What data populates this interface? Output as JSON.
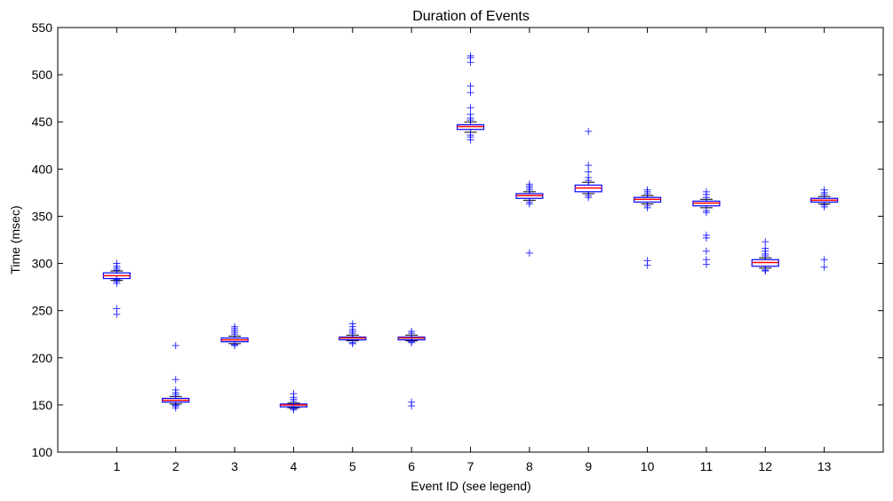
{
  "chart_data": {
    "type": "boxplot",
    "title": "Duration of Events",
    "xlabel": "Event ID (see legend)",
    "ylabel": "Time (msec)",
    "ylim": [
      100,
      550
    ],
    "yticks": [
      100,
      150,
      200,
      250,
      300,
      350,
      400,
      450,
      500,
      550
    ],
    "categories": [
      "1",
      "2",
      "3",
      "4",
      "5",
      "6",
      "7",
      "8",
      "9",
      "10",
      "11",
      "12",
      "13"
    ],
    "grid": false,
    "colors": {
      "box": "#0000ff",
      "median": "#ff0000",
      "flier": "#0000ff"
    },
    "series": [
      {
        "category": "1",
        "q1": 284,
        "median": 287,
        "q3": 290,
        "whisker_low": 282,
        "whisker_high": 292,
        "fliers": [
          246,
          252,
          279,
          281,
          283,
          293,
          295,
          297,
          300
        ]
      },
      {
        "category": "2",
        "q1": 153,
        "median": 155,
        "q3": 157,
        "whisker_low": 151,
        "whisker_high": 159,
        "fliers": [
          147,
          149,
          150,
          161,
          163,
          166,
          177,
          213
        ]
      },
      {
        "category": "3",
        "q1": 217,
        "median": 219,
        "q3": 221,
        "whisker_low": 215,
        "whisker_high": 223,
        "fliers": [
          213,
          214,
          225,
          227,
          229,
          231,
          233
        ]
      },
      {
        "category": "4",
        "q1": 148,
        "median": 150,
        "q3": 151,
        "whisker_low": 147,
        "whisker_high": 152,
        "fliers": [
          145,
          146,
          154,
          156,
          158,
          162
        ]
      },
      {
        "category": "5",
        "q1": 219,
        "median": 221,
        "q3": 222,
        "whisker_low": 218,
        "whisker_high": 224,
        "fliers": [
          215,
          216,
          226,
          228,
          230,
          233,
          236
        ]
      },
      {
        "category": "6",
        "q1": 219,
        "median": 221,
        "q3": 222,
        "whisker_low": 218,
        "whisker_high": 224,
        "fliers": [
          149,
          153,
          216,
          217,
          226,
          228
        ]
      },
      {
        "category": "7",
        "q1": 442,
        "median": 445,
        "q3": 447,
        "whisker_low": 439,
        "whisker_high": 450,
        "fliers": [
          431,
          434,
          436,
          452,
          454,
          458,
          465,
          481,
          488,
          513,
          518,
          520
        ]
      },
      {
        "category": "8",
        "q1": 369,
        "median": 372,
        "q3": 374,
        "whisker_low": 367,
        "whisker_high": 376,
        "fliers": [
          311,
          363,
          365,
          378,
          380,
          382,
          384
        ]
      },
      {
        "category": "9",
        "q1": 376,
        "median": 380,
        "q3": 383,
        "whisker_low": 374,
        "whisker_high": 386,
        "fliers": [
          370,
          372,
          388,
          391,
          397,
          404,
          440
        ]
      },
      {
        "category": "10",
        "q1": 365,
        "median": 368,
        "q3": 370,
        "whisker_low": 363,
        "whisker_high": 372,
        "fliers": [
          298,
          303,
          359,
          361,
          374,
          376,
          378
        ]
      },
      {
        "category": "11",
        "q1": 361,
        "median": 364,
        "q3": 366,
        "whisker_low": 359,
        "whisker_high": 368,
        "fliers": [
          299,
          304,
          313,
          327,
          330,
          354,
          356,
          370,
          373,
          376
        ]
      },
      {
        "category": "12",
        "q1": 297,
        "median": 301,
        "q3": 304,
        "whisker_low": 295,
        "whisker_high": 306,
        "fliers": [
          292,
          293,
          308,
          310,
          313,
          316,
          323
        ]
      },
      {
        "category": "13",
        "q1": 365,
        "median": 367,
        "q3": 369,
        "whisker_low": 363,
        "whisker_high": 371,
        "fliers": [
          296,
          304,
          360,
          362,
          373,
          375,
          378
        ]
      }
    ]
  }
}
